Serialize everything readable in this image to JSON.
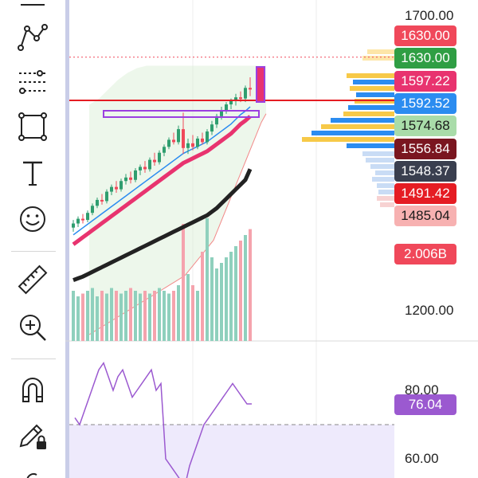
{
  "toolbar": {
    "tools": [
      {
        "name": "pattern-tool",
        "icon": "pattern-icon"
      },
      {
        "name": "fib-tool",
        "icon": "fib-retracement-icon"
      },
      {
        "name": "rectangle-tool",
        "icon": "rectangle-icon"
      },
      {
        "name": "text-tool",
        "icon": "text-icon"
      },
      {
        "name": "emoji-tool",
        "icon": "smiley-icon"
      },
      {
        "name": "ruler-tool",
        "icon": "ruler-icon"
      },
      {
        "name": "zoom-tool",
        "icon": "zoom-in-icon"
      },
      {
        "name": "magnet-tool",
        "icon": "magnet-icon"
      },
      {
        "name": "lock-drawing-tool",
        "icon": "pencil-lock-icon"
      }
    ]
  },
  "price_axis": {
    "labels": [
      {
        "text": "1700.00",
        "value": 1700
      },
      {
        "text": "1200.00",
        "value": 1200
      }
    ],
    "tags": [
      {
        "text": "1630.00",
        "value": 1630.0,
        "color": "#f0485a"
      },
      {
        "text": "1630.00",
        "value": 1630.0,
        "color": "#2f9e44"
      },
      {
        "text": "1597.22",
        "value": 1597.22,
        "color": "#e8336f"
      },
      {
        "text": "1592.52",
        "value": 1592.52,
        "color": "#2b8cf0"
      },
      {
        "text": "1574.68",
        "value": 1574.68,
        "color": "#a9dca9",
        "text_color": "#1a1a1a"
      },
      {
        "text": "1556.84",
        "value": 1556.84,
        "color": "#7a1620"
      },
      {
        "text": "1548.37",
        "value": 1548.37,
        "color": "#3a3f4f"
      },
      {
        "text": "1491.42",
        "value": 1491.42,
        "color": "#e51c23"
      },
      {
        "text": "1485.04",
        "value": 1485.04,
        "color": "#f7b1b1",
        "text_color": "#1a1a1a"
      }
    ],
    "volume_tag": {
      "text": "2.006B",
      "color": "#f0485a"
    }
  },
  "rsi_axis": {
    "labels": [
      {
        "text": "80.00",
        "value": 80
      },
      {
        "text": "60.00",
        "value": 60
      }
    ],
    "tag": {
      "text": "76.04",
      "value": 76.04,
      "color": "#9b59d0"
    }
  },
  "chart_data": {
    "type": "candlestick",
    "candles": [
      {
        "o": 1395,
        "h": 1408,
        "l": 1388,
        "c": 1402
      },
      {
        "o": 1402,
        "h": 1414,
        "l": 1396,
        "c": 1410
      },
      {
        "o": 1410,
        "h": 1418,
        "l": 1402,
        "c": 1408
      },
      {
        "o": 1408,
        "h": 1424,
        "l": 1404,
        "c": 1420
      },
      {
        "o": 1420,
        "h": 1436,
        "l": 1416,
        "c": 1432
      },
      {
        "o": 1432,
        "h": 1446,
        "l": 1428,
        "c": 1442
      },
      {
        "o": 1442,
        "h": 1452,
        "l": 1434,
        "c": 1440
      },
      {
        "o": 1440,
        "h": 1460,
        "l": 1436,
        "c": 1456
      },
      {
        "o": 1456,
        "h": 1468,
        "l": 1450,
        "c": 1464
      },
      {
        "o": 1464,
        "h": 1474,
        "l": 1454,
        "c": 1460
      },
      {
        "o": 1460,
        "h": 1478,
        "l": 1456,
        "c": 1474
      },
      {
        "o": 1474,
        "h": 1486,
        "l": 1468,
        "c": 1480
      },
      {
        "o": 1480,
        "h": 1490,
        "l": 1470,
        "c": 1476
      },
      {
        "o": 1476,
        "h": 1496,
        "l": 1472,
        "c": 1492
      },
      {
        "o": 1492,
        "h": 1502,
        "l": 1484,
        "c": 1498
      },
      {
        "o": 1498,
        "h": 1508,
        "l": 1488,
        "c": 1494
      },
      {
        "o": 1494,
        "h": 1514,
        "l": 1490,
        "c": 1510
      },
      {
        "o": 1510,
        "h": 1522,
        "l": 1500,
        "c": 1506
      },
      {
        "o": 1506,
        "h": 1526,
        "l": 1502,
        "c": 1522
      },
      {
        "o": 1522,
        "h": 1536,
        "l": 1516,
        "c": 1532
      },
      {
        "o": 1532,
        "h": 1548,
        "l": 1528,
        "c": 1544
      },
      {
        "o": 1544,
        "h": 1556,
        "l": 1536,
        "c": 1540
      },
      {
        "o": 1540,
        "h": 1568,
        "l": 1536,
        "c": 1562
      },
      {
        "o": 1562,
        "h": 1590,
        "l": 1520,
        "c": 1530
      },
      {
        "o": 1530,
        "h": 1546,
        "l": 1520,
        "c": 1538
      },
      {
        "o": 1538,
        "h": 1552,
        "l": 1526,
        "c": 1532
      },
      {
        "o": 1532,
        "h": 1550,
        "l": 1528,
        "c": 1546
      },
      {
        "o": 1546,
        "h": 1556,
        "l": 1536,
        "c": 1540
      },
      {
        "o": 1540,
        "h": 1562,
        "l": 1536,
        "c": 1558
      },
      {
        "o": 1558,
        "h": 1576,
        "l": 1552,
        "c": 1570
      },
      {
        "o": 1570,
        "h": 1588,
        "l": 1564,
        "c": 1584
      },
      {
        "o": 1584,
        "h": 1600,
        "l": 1578,
        "c": 1594
      },
      {
        "o": 1594,
        "h": 1608,
        "l": 1588,
        "c": 1604
      },
      {
        "o": 1604,
        "h": 1614,
        "l": 1596,
        "c": 1610
      },
      {
        "o": 1610,
        "h": 1622,
        "l": 1602,
        "c": 1616
      },
      {
        "o": 1616,
        "h": 1626,
        "l": 1608,
        "c": 1614
      },
      {
        "o": 1614,
        "h": 1636,
        "l": 1608,
        "c": 1632
      },
      {
        "o": 1632,
        "h": 1650,
        "l": 1618,
        "c": 1630
      }
    ],
    "ema_fast": [
      1380,
      1386,
      1392,
      1398,
      1404,
      1410,
      1416,
      1422,
      1428,
      1434,
      1440,
      1446,
      1452,
      1458,
      1464,
      1470,
      1476,
      1482,
      1488,
      1494,
      1500,
      1506,
      1512,
      1518,
      1522,
      1526,
      1530,
      1534,
      1538,
      1544,
      1550,
      1556,
      1562,
      1568,
      1576,
      1584,
      1590,
      1597.22
    ],
    "ema_slow": [
      1360,
      1363,
      1366,
      1370,
      1374,
      1378,
      1382,
      1386,
      1390,
      1394,
      1398,
      1402,
      1406,
      1410,
      1414,
      1418,
      1422,
      1426,
      1430,
      1434,
      1438,
      1442,
      1446,
      1450,
      1454,
      1458,
      1462,
      1466,
      1470,
      1476,
      1482,
      1490,
      1498,
      1506,
      1514,
      1522,
      1530,
      1548.37
    ],
    "cloud_upper": [
      1590,
      1595,
      1600,
      1608,
      1616,
      1624,
      1632,
      1638,
      1644,
      1648,
      1652,
      1654,
      1656,
      1656,
      1656,
      1656,
      1656,
      1656,
      1656,
      1656,
      1656,
      1656,
      1656,
      1656,
      1656,
      1656,
      1656,
      1656,
      1656,
      1656,
      1656,
      1656,
      1656,
      1656,
      1656,
      1656,
      1656,
      1656
    ],
    "cloud_lower": [
      1200,
      1205,
      1210,
      1215,
      1220,
      1225,
      1230,
      1235,
      1240,
      1245,
      1250,
      1255,
      1260,
      1265,
      1270,
      1275,
      1280,
      1285,
      1290,
      1295,
      1300,
      1310,
      1320,
      1330,
      1340,
      1350,
      1360,
      1380,
      1400,
      1420,
      1440,
      1460,
      1480,
      1500,
      1520,
      1540,
      1560,
      1574.68
    ],
    "volume": [
      0.9,
      0.8,
      0.85,
      0.9,
      0.95,
      0.8,
      0.9,
      0.85,
      0.95,
      0.9,
      0.85,
      0.9,
      0.95,
      0.9,
      0.85,
      0.9,
      0.85,
      0.9,
      0.95,
      0.9,
      0.85,
      0.9,
      1.0,
      2.1,
      1.2,
      1.0,
      0.9,
      1.6,
      2.2,
      1.5,
      1.3,
      1.4,
      1.5,
      1.6,
      1.7,
      1.8,
      1.9,
      2.006
    ],
    "volume_up": [
      true,
      true,
      false,
      true,
      true,
      true,
      false,
      true,
      true,
      false,
      true,
      true,
      false,
      true,
      true,
      false,
      true,
      false,
      true,
      true,
      true,
      false,
      true,
      false,
      true,
      false,
      true,
      false,
      true,
      true,
      true,
      true,
      true,
      true,
      true,
      false,
      true,
      false
    ],
    "rsi": [
      72,
      70,
      74,
      78,
      82,
      86,
      88,
      84,
      80,
      84,
      86,
      82,
      78,
      80,
      82,
      84,
      86,
      80,
      82,
      60,
      58,
      56,
      54,
      52,
      58,
      62,
      66,
      70,
      72,
      74,
      76,
      78,
      80,
      82,
      80,
      78,
      76.04,
      76.04
    ],
    "support_line": 1556.84,
    "dotted_line": 1630.0,
    "rsi_threshold": 70
  }
}
